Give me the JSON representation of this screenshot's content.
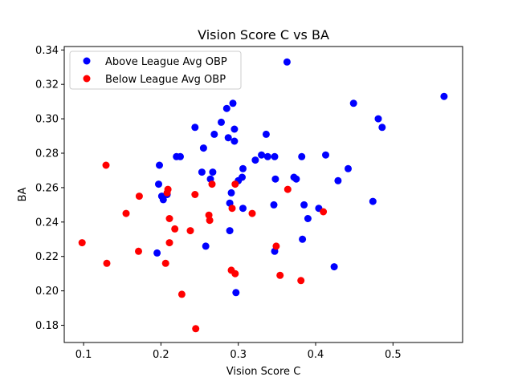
{
  "chart_data": {
    "type": "scatter",
    "title": "Vision Score C vs BA",
    "xlabel": "Vision Score C",
    "ylabel": "BA",
    "xlim": [
      0.075,
      0.59
    ],
    "ylim": [
      0.17,
      0.342
    ],
    "xticks": [
      0.1,
      0.2,
      0.3,
      0.4,
      0.5
    ],
    "xtick_labels": [
      "0.1",
      "0.2",
      "0.3",
      "0.4",
      "0.5"
    ],
    "yticks": [
      0.18,
      0.2,
      0.22,
      0.24,
      0.26,
      0.28,
      0.3,
      0.32,
      0.34
    ],
    "ytick_labels": [
      "0.18",
      "0.20",
      "0.22",
      "0.24",
      "0.26",
      "0.28",
      "0.30",
      "0.32",
      "0.34"
    ],
    "grid": false,
    "legend_position": "top-left",
    "series": [
      {
        "name": "Above League Avg OBP",
        "color": "#0000ff",
        "points": [
          [
            0.363,
            0.333
          ],
          [
            0.566,
            0.313
          ],
          [
            0.293,
            0.309
          ],
          [
            0.449,
            0.309
          ],
          [
            0.285,
            0.306
          ],
          [
            0.481,
            0.3
          ],
          [
            0.278,
            0.298
          ],
          [
            0.244,
            0.295
          ],
          [
            0.295,
            0.294
          ],
          [
            0.486,
            0.295
          ],
          [
            0.269,
            0.291
          ],
          [
            0.336,
            0.291
          ],
          [
            0.287,
            0.289
          ],
          [
            0.295,
            0.287
          ],
          [
            0.255,
            0.283
          ],
          [
            0.33,
            0.279
          ],
          [
            0.413,
            0.279
          ],
          [
            0.22,
            0.278
          ],
          [
            0.225,
            0.278
          ],
          [
            0.338,
            0.278
          ],
          [
            0.347,
            0.278
          ],
          [
            0.382,
            0.278
          ],
          [
            0.322,
            0.276
          ],
          [
            0.198,
            0.273
          ],
          [
            0.442,
            0.271
          ],
          [
            0.306,
            0.271
          ],
          [
            0.253,
            0.269
          ],
          [
            0.267,
            0.269
          ],
          [
            0.372,
            0.266
          ],
          [
            0.305,
            0.266
          ],
          [
            0.375,
            0.265
          ],
          [
            0.348,
            0.265
          ],
          [
            0.264,
            0.265
          ],
          [
            0.3,
            0.264
          ],
          [
            0.429,
            0.264
          ],
          [
            0.197,
            0.262
          ],
          [
            0.291,
            0.257
          ],
          [
            0.208,
            0.256
          ],
          [
            0.201,
            0.255
          ],
          [
            0.203,
            0.253
          ],
          [
            0.474,
            0.252
          ],
          [
            0.289,
            0.251
          ],
          [
            0.346,
            0.25
          ],
          [
            0.385,
            0.25
          ],
          [
            0.306,
            0.248
          ],
          [
            0.404,
            0.248
          ],
          [
            0.39,
            0.242
          ],
          [
            0.289,
            0.235
          ],
          [
            0.383,
            0.23
          ],
          [
            0.258,
            0.226
          ],
          [
            0.347,
            0.223
          ],
          [
            0.195,
            0.222
          ],
          [
            0.424,
            0.214
          ],
          [
            0.297,
            0.199
          ]
        ]
      },
      {
        "name": "Below League Avg OBP",
        "color": "#ff0000",
        "points": [
          [
            0.129,
            0.273
          ],
          [
            0.296,
            0.262
          ],
          [
            0.266,
            0.262
          ],
          [
            0.209,
            0.259
          ],
          [
            0.364,
            0.259
          ],
          [
            0.208,
            0.257
          ],
          [
            0.244,
            0.256
          ],
          [
            0.172,
            0.255
          ],
          [
            0.41,
            0.246
          ],
          [
            0.155,
            0.245
          ],
          [
            0.318,
            0.245
          ],
          [
            0.262,
            0.244
          ],
          [
            0.211,
            0.242
          ],
          [
            0.263,
            0.241
          ],
          [
            0.292,
            0.248
          ],
          [
            0.218,
            0.236
          ],
          [
            0.238,
            0.235
          ],
          [
            0.098,
            0.228
          ],
          [
            0.211,
            0.228
          ],
          [
            0.349,
            0.226
          ],
          [
            0.171,
            0.223
          ],
          [
            0.13,
            0.216
          ],
          [
            0.206,
            0.216
          ],
          [
            0.291,
            0.212
          ],
          [
            0.296,
            0.21
          ],
          [
            0.354,
            0.209
          ],
          [
            0.381,
            0.206
          ],
          [
            0.227,
            0.198
          ],
          [
            0.245,
            0.178
          ]
        ]
      }
    ]
  }
}
